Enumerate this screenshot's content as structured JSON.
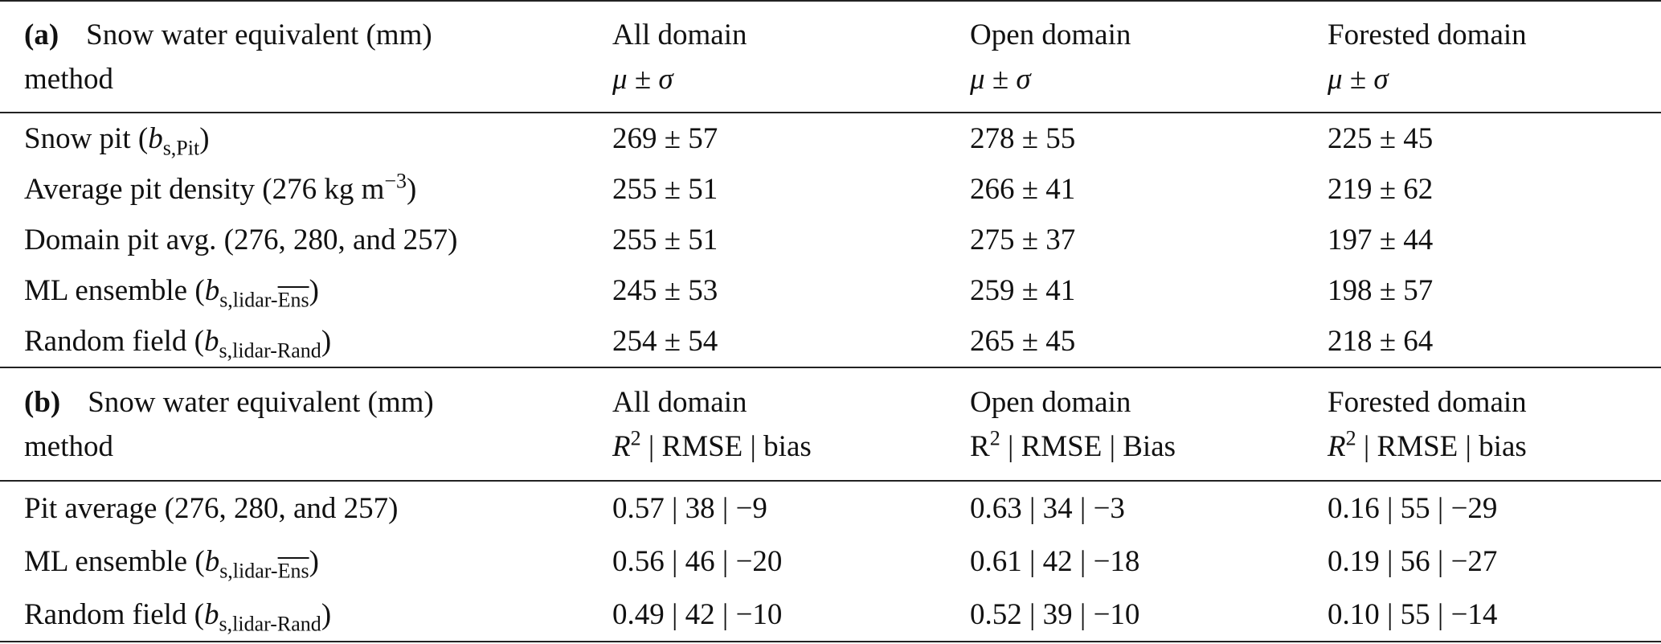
{
  "sections": [
    {
      "header": {
        "label": [
          [
            {
              "bold": "(a)"
            },
            "Snow water equivalent (mm)"
          ],
          [
            "method"
          ]
        ],
        "columns": [
          {
            "lines": [
              [
                "All domain"
              ],
              [
                {
                  "italic": "μ"
                },
                " ± ",
                {
                  "italic": "σ"
                }
              ]
            ]
          },
          {
            "lines": [
              [
                "Open domain"
              ],
              [
                {
                  "italic": "μ"
                },
                " ± ",
                {
                  "italic": "σ"
                }
              ]
            ]
          },
          {
            "lines": [
              [
                "Forested domain"
              ],
              [
                {
                  "italic": "μ"
                },
                " ± ",
                {
                  "italic": "σ"
                }
              ]
            ]
          }
        ]
      },
      "rows": [
        {
          "label": [
            "Snow pit (",
            {
              "italic": "b"
            },
            {
              "sub": "s,Pit"
            },
            ")"
          ],
          "values": [
            "269 ± 57",
            "278 ± 55",
            "225 ± 45"
          ]
        },
        {
          "label": [
            "Average pit density (276 kg m",
            {
              "sup": "−3"
            },
            ")"
          ],
          "values": [
            "255 ± 51",
            "266 ± 41",
            "219 ± 62"
          ]
        },
        {
          "label": [
            "Domain pit avg. (276, 280, and 257)"
          ],
          "values": [
            "255 ± 51",
            "275 ± 37",
            "197 ± 44"
          ]
        },
        {
          "label": [
            "ML ensemble (",
            {
              "italic": "b"
            },
            {
              "sub": [
                "s,lidar-",
                {
                  "overline": "Ens"
                }
              ]
            },
            ")"
          ],
          "values": [
            "245 ± 53",
            "259 ± 41",
            "198 ± 57"
          ]
        },
        {
          "label": [
            "Random field (",
            {
              "italic": "b"
            },
            {
              "sub": "s,lidar-Rand"
            },
            ")"
          ],
          "values": [
            "254 ± 54",
            "265 ± 45",
            "218 ± 64"
          ]
        }
      ]
    },
    {
      "header": {
        "label": [
          [
            {
              "bold": "(b)"
            },
            "Snow water equivalent (mm)"
          ],
          [
            "method"
          ]
        ],
        "columns": [
          {
            "lines": [
              [
                "All domain"
              ],
              [
                {
                  "italic": "R"
                },
                {
                  "sup": "2"
                },
                " | RMSE | bias"
              ]
            ]
          },
          {
            "lines": [
              [
                "Open domain"
              ],
              [
                "R",
                {
                  "sup": "2"
                },
                " | RMSE | Bias"
              ]
            ]
          },
          {
            "lines": [
              [
                "Forested domain"
              ],
              [
                {
                  "italic": "R"
                },
                {
                  "sup": "2"
                },
                " | RMSE | bias"
              ]
            ]
          }
        ]
      },
      "rows": [
        {
          "label": [
            "Pit average (276, 280, and 257)"
          ],
          "values": [
            "0.57 | 38 | −9",
            "0.63 | 34 | −3",
            "0.16 | 55 | −29"
          ]
        },
        {
          "label": [
            "ML ensemble (",
            {
              "italic": "b"
            },
            {
              "sub": [
                "s,lidar-",
                {
                  "overline": "Ens"
                }
              ]
            },
            ")"
          ],
          "values": [
            "0.56 | 46 | −20",
            "0.61 | 42 | −18",
            "0.19 | 56 | −27"
          ]
        },
        {
          "label": [
            "Random field (",
            {
              "italic": "b"
            },
            {
              "sub": "s,lidar-Rand"
            },
            ")"
          ],
          "values": [
            "0.49 | 42 | −10",
            "0.52 | 39 | −10",
            "0.10 | 55 | −14"
          ]
        }
      ]
    }
  ]
}
